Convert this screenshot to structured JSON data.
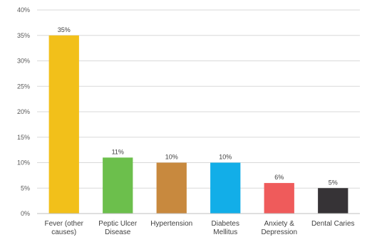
{
  "chart_data": {
    "type": "bar",
    "title": "",
    "xlabel": "",
    "ylabel": "",
    "ylim": [
      0,
      40
    ],
    "yticks": [
      0,
      5,
      10,
      15,
      20,
      25,
      30,
      35,
      40
    ],
    "ytick_labels": [
      "0%",
      "5%",
      "10%",
      "15%",
      "20%",
      "25%",
      "30%",
      "35%",
      "40%"
    ],
    "grid": true,
    "legend": "none",
    "categories": [
      [
        "Fever (other",
        "causes)"
      ],
      [
        "Peptic Ulcer",
        "Disease"
      ],
      [
        "Hypertension"
      ],
      [
        "Diabetes",
        "Mellitus"
      ],
      [
        "Anxiety &",
        "Depression"
      ],
      [
        "Dental Caries"
      ]
    ],
    "values": [
      35,
      11,
      10,
      10,
      6,
      5
    ],
    "data_labels": [
      "35%",
      "11%",
      "10%",
      "10%",
      "6%",
      "5%"
    ],
    "colors": [
      "#f2c01a",
      "#6cbf4c",
      "#c8893e",
      "#12aee8",
      "#ef5b5b",
      "#363336"
    ]
  }
}
